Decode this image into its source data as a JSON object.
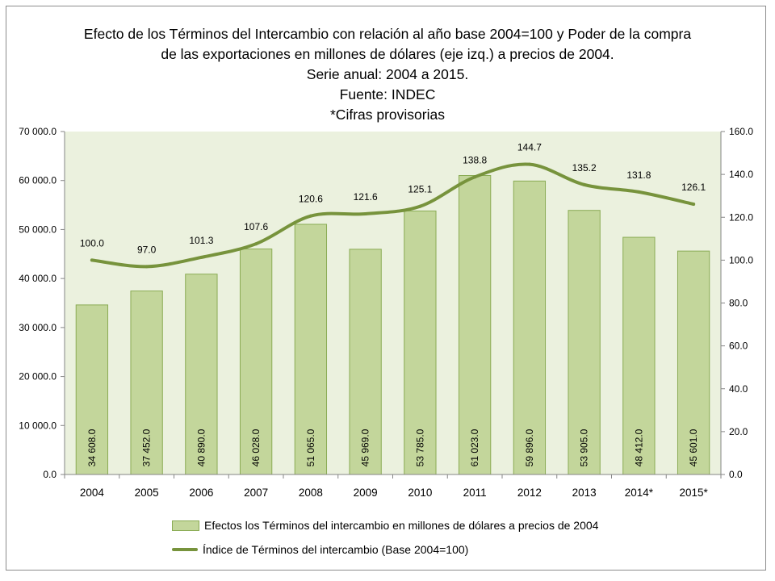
{
  "title_lines": [
    "Efecto de los Términos del Intercambio con relación al año base 2004=100 y Poder de la compra",
    "de las exportaciones en millones de dólares (eje izq.) a precios de 2004.",
    "Serie anual: 2004 a 2015.",
    "Fuente: INDEC",
    "*Cifras provisorias"
  ],
  "chart_data": {
    "type": "bar",
    "categories": [
      "2004",
      "2005",
      "2006",
      "2007",
      "2008",
      "2009",
      "2010",
      "2011",
      "2012",
      "2013",
      "2014*",
      "2015*"
    ],
    "series": [
      {
        "name": "Efectos los Términos del intercambio en millones de dólares a precios de 2004",
        "type": "bar",
        "axis": "left",
        "values": [
          34608.0,
          37452.0,
          40890.0,
          46028.0,
          51065.0,
          45969.0,
          53785.0,
          61023.0,
          59896.0,
          53905.0,
          48412.0,
          45601.0
        ],
        "labels": [
          "34 608.0",
          "37 452.0",
          "40 890.0",
          "46 028.0",
          "51 065.0",
          "45 969.0",
          "53 785.0",
          "61 023.0",
          "59 896.0",
          "53 905.0",
          "48 412.0",
          "45 601.0"
        ],
        "color": "#c3d69b"
      },
      {
        "name": "Índice de Términos del intercambio (Base 2004=100)",
        "type": "line",
        "axis": "right",
        "values": [
          100.0,
          97.0,
          101.3,
          107.6,
          120.6,
          121.6,
          125.1,
          138.8,
          144.7,
          135.2,
          131.8,
          126.1
        ],
        "labels": [
          "100.0",
          "97.0",
          "101.3",
          "107.6",
          "120.6",
          "121.6",
          "125.1",
          "138.8",
          "144.7",
          "135.2",
          "131.8",
          "126.1"
        ],
        "color": "#77933c"
      }
    ],
    "y_left": {
      "range": [
        0,
        70000
      ],
      "ticks": [
        0,
        10000,
        20000,
        30000,
        40000,
        50000,
        60000,
        70000
      ],
      "tick_labels": [
        "0.0",
        "10 000.0",
        "20 000.0",
        "30 000.0",
        "40 000.0",
        "50 000.0",
        "60 000.0",
        "70 000.0"
      ]
    },
    "y_right": {
      "range": [
        0,
        160
      ],
      "ticks": [
        0,
        20,
        40,
        60,
        80,
        100,
        120,
        140,
        160
      ],
      "tick_labels": [
        "0.0",
        "20.0",
        "40.0",
        "60.0",
        "80.0",
        "100.0",
        "120.0",
        "140.0",
        "160.0"
      ]
    },
    "plot_background": "#ebf1de",
    "grid": false,
    "legend_position": "bottom"
  }
}
